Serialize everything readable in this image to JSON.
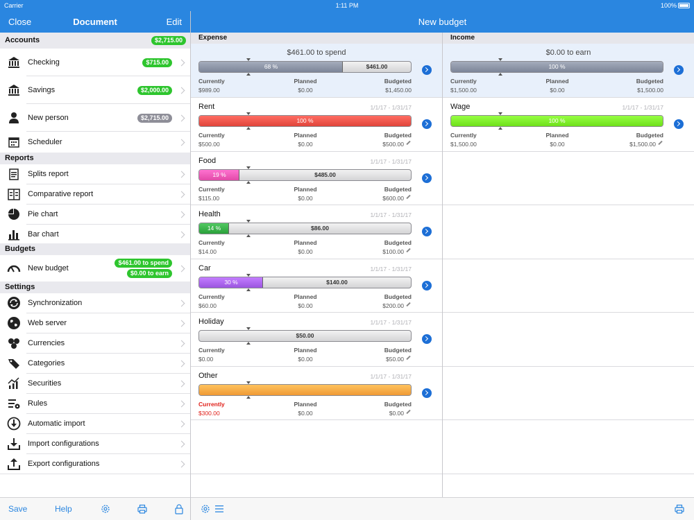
{
  "status": {
    "carrier": "Carrier",
    "time": "1:11 PM",
    "battery": "100%"
  },
  "left_nav": {
    "close": "Close",
    "title": "Document",
    "edit": "Edit"
  },
  "right_nav": {
    "title": "New budget"
  },
  "sidebar": {
    "accounts_header": "Accounts",
    "accounts_total": "$2,715.00",
    "accounts": [
      {
        "label": "Checking",
        "badge": "$715.00",
        "icon": "bank-icon"
      },
      {
        "label": "Savings",
        "badge": "$2,000.00",
        "icon": "bank-icon"
      },
      {
        "label": "New person",
        "badge": "$2,715.00",
        "icon": "person-icon"
      },
      {
        "label": "Scheduler",
        "icon": "calendar-icon"
      }
    ],
    "reports_header": "Reports",
    "reports": [
      {
        "label": "Splits report"
      },
      {
        "label": "Comparative report"
      },
      {
        "label": "Pie chart"
      },
      {
        "label": "Bar chart"
      }
    ],
    "budgets_header": "Budgets",
    "budget_item": {
      "label": "New budget",
      "spend": "$461.00 to spend",
      "earn": "$0.00 to earn"
    },
    "settings_header": "Settings",
    "settings": [
      {
        "label": "Synchronization"
      },
      {
        "label": "Web server"
      },
      {
        "label": "Currencies"
      },
      {
        "label": "Categories"
      },
      {
        "label": "Securities"
      },
      {
        "label": "Rules"
      },
      {
        "label": "Automatic import"
      },
      {
        "label": "Import configurations"
      },
      {
        "label": "Export configurations"
      }
    ]
  },
  "toolbar": {
    "save": "Save",
    "help": "Help"
  },
  "budget": {
    "expense_header": "Expense",
    "income_header": "Income",
    "labels": {
      "currently": "Currently",
      "planned": "Planned",
      "budgeted": "Budgeted"
    },
    "expense_summary": {
      "spend": "$461.00 to spend",
      "percent": "68 %",
      "remaining": "$461.00",
      "fill_fraction": 0.68,
      "currently": "$989.00",
      "planned": "$0.00",
      "budgeted": "$1,450.00"
    },
    "income_summary": {
      "spend": "$0.00 to earn",
      "percent": "100 %",
      "fill_fraction": 1.0,
      "currently": "$1,500.00",
      "planned": "$0.00",
      "budgeted": "$1,500.00"
    },
    "expenses": [
      {
        "name": "Rent",
        "date": "1/1/17 - 1/31/17",
        "percent": "100 %",
        "remaining": "",
        "fill_fraction": 1.0,
        "color": "#e0443a",
        "currently": "$500.00",
        "planned": "$0.00",
        "budgeted": "$500.00"
      },
      {
        "name": "Food",
        "date": "1/1/17 - 1/31/17",
        "percent": "19 %",
        "remaining": "$485.00",
        "fill_fraction": 0.19,
        "color": "#e24aa8",
        "currently": "$115.00",
        "planned": "$0.00",
        "budgeted": "$600.00"
      },
      {
        "name": "Health",
        "date": "1/1/17 - 1/31/17",
        "percent": "14 %",
        "remaining": "$86.00",
        "fill_fraction": 0.14,
        "color": "#2aa03a",
        "currently": "$14.00",
        "planned": "$0.00",
        "budgeted": "$100.00"
      },
      {
        "name": "Car",
        "date": "1/1/17 - 1/31/17",
        "percent": "30 %",
        "remaining": "$140.00",
        "fill_fraction": 0.3,
        "color": "#9b55e0",
        "currently": "$60.00",
        "planned": "$0.00",
        "budgeted": "$200.00"
      },
      {
        "name": "Holiday",
        "date": "1/1/17 - 1/31/17",
        "percent": "",
        "remaining": "$50.00",
        "fill_fraction": 0.0,
        "color": "#cccccc",
        "currently": "$0.00",
        "planned": "$0.00",
        "budgeted": "$50.00"
      },
      {
        "name": "Other",
        "date": "1/1/17 - 1/31/17",
        "percent": "",
        "remaining": "",
        "fill_fraction": 1.0,
        "color": "#f09a35",
        "currently": "$300.00",
        "planned": "$0.00",
        "budgeted": "$0.00",
        "over": true
      }
    ],
    "incomes": [
      {
        "name": "Wage",
        "date": "1/1/17 - 1/31/17",
        "percent": "100 %",
        "remaining": "",
        "fill_fraction": 1.0,
        "color": "#6ee01a",
        "currently": "$1,500.00",
        "planned": "$0.00",
        "budgeted": "$1,500.00"
      }
    ]
  }
}
